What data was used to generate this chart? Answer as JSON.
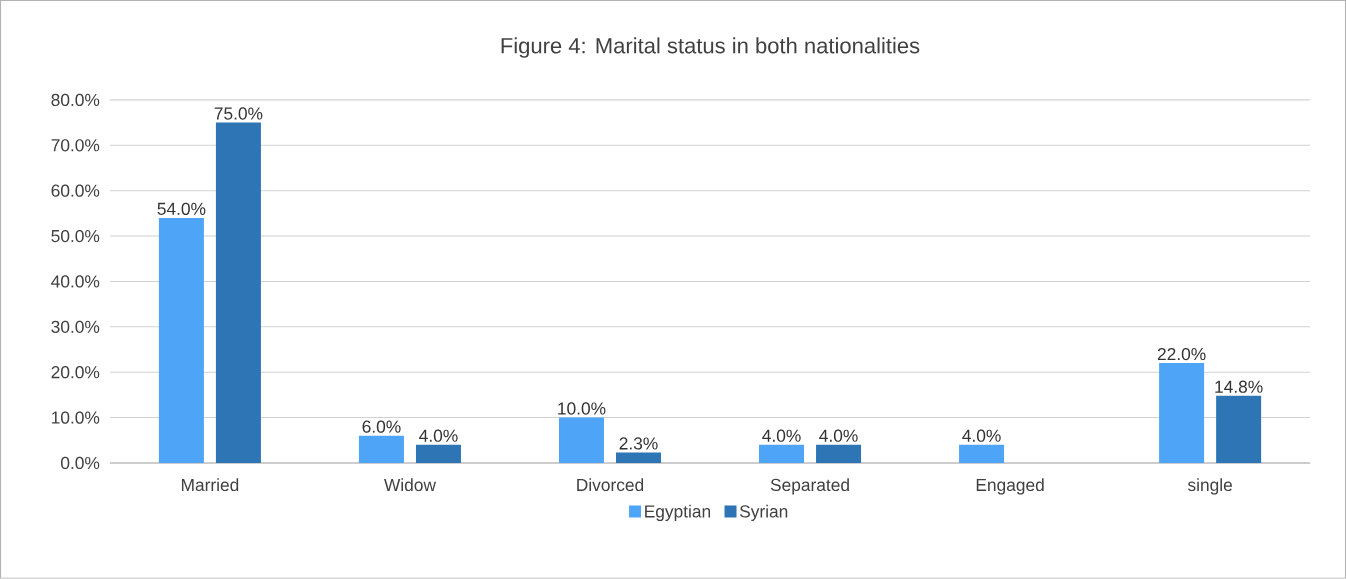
{
  "chart_data": {
    "type": "bar",
    "title": "Figure 4: Marital status in both nationalities",
    "categories": [
      "Married",
      "Widow",
      "Divorced",
      "Separated",
      "Engaged",
      "single"
    ],
    "series": [
      {
        "name": "Egyptian",
        "color": "#4ea5f8",
        "values": [
          54,
          6,
          10,
          4,
          4,
          22
        ],
        "value_labels": [
          "54.0%",
          "6.0%",
          "10.0%",
          "4.0%",
          "4.0%",
          "22.0%"
        ]
      },
      {
        "name": "Syrian",
        "color": "#2e75b6",
        "values": [
          75,
          4,
          2.3,
          4,
          null,
          14.8
        ],
        "value_labels": [
          "75.0%",
          "4.0%",
          "2.3%",
          "4.0%",
          null,
          "14.8%"
        ]
      }
    ],
    "ylim": [
      0,
      80
    ],
    "yticks": [
      {
        "value": 0,
        "label": "0.0%"
      },
      {
        "value": 10,
        "label": "10.0%"
      },
      {
        "value": 20,
        "label": "20.0%"
      },
      {
        "value": 30,
        "label": "30.0%"
      },
      {
        "value": 40,
        "label": "40.0%"
      },
      {
        "value": 50,
        "label": "50.0%"
      },
      {
        "value": 60,
        "label": "60.0%"
      },
      {
        "value": 70,
        "label": "70.0%"
      },
      {
        "value": 80,
        "label": "80.0%"
      }
    ],
    "grid": "y",
    "legend": "bottom"
  }
}
